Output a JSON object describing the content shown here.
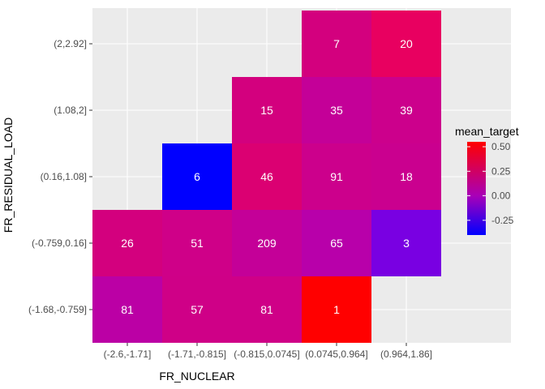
{
  "chart_data": {
    "type": "heatmap",
    "title": "",
    "xlabel": "FR_NUCLEAR",
    "ylabel": "FR_RESIDUAL_LOAD",
    "x_categories": [
      "(-2.6,-1.71]",
      "(-1.71,-0.815]",
      "(-0.815,0.0745]",
      "(0.0745,0.964]",
      "(0.964,1.86]"
    ],
    "y_categories": [
      "(-1.68,-0.759]",
      "(-0.759,0.16]",
      "(0.16,1.08]",
      "(1.08,2]",
      "(2,2.92]"
    ],
    "grid": true,
    "legend_position": "right",
    "legend": {
      "title": "mean_target",
      "ticks": [
        0.5,
        0.25,
        0.0,
        -0.25
      ],
      "tick_labels": [
        "0.50",
        "0.25",
        "0.00",
        "-0.25"
      ],
      "range": [
        -0.4,
        0.55
      ],
      "low_color": "#0000FF",
      "high_color": "#FF0000"
    },
    "cells": [
      {
        "x": "(-2.6,-1.71]",
        "y": "(-1.68,-0.759]",
        "count": 81,
        "mean_target": 0.02,
        "color": "#BB00A5"
      },
      {
        "x": "(-1.71,-0.815]",
        "y": "(-1.68,-0.759]",
        "count": 57,
        "mean_target": 0.13,
        "color": "#CF0087"
      },
      {
        "x": "(-0.815,0.0745]",
        "y": "(-1.68,-0.759]",
        "count": 81,
        "mean_target": 0.13,
        "color": "#CF0087"
      },
      {
        "x": "(0.0745,0.964]",
        "y": "(-1.68,-0.759]",
        "count": 1,
        "mean_target": 0.55,
        "color": "#FF0000"
      },
      {
        "x": "(-2.6,-1.71]",
        "y": "(-0.759,0.16]",
        "count": 26,
        "mean_target": 0.16,
        "color": "#D3007E"
      },
      {
        "x": "(-1.71,-0.815]",
        "y": "(-0.759,0.16]",
        "count": 51,
        "mean_target": 0.13,
        "color": "#CF0088"
      },
      {
        "x": "(-0.815,0.0745]",
        "y": "(-0.759,0.16]",
        "count": 209,
        "mean_target": 0.06,
        "color": "#C40098"
      },
      {
        "x": "(0.0745,0.964]",
        "y": "(-0.759,0.16]",
        "count": 65,
        "mean_target": 0.0,
        "color": "#B800AA"
      },
      {
        "x": "(0.964,1.86]",
        "y": "(-0.759,0.16]",
        "count": 3,
        "mean_target": -0.2,
        "color": "#7900E2"
      },
      {
        "x": "(-1.71,-0.815]",
        "y": "(0.16,1.08]",
        "count": 6,
        "mean_target": -0.4,
        "color": "#0000FF"
      },
      {
        "x": "(-0.815,0.0745]",
        "y": "(0.16,1.08]",
        "count": 46,
        "mean_target": 0.2,
        "color": "#DB0072"
      },
      {
        "x": "(0.0745,0.964]",
        "y": "(0.16,1.08]",
        "count": 91,
        "mean_target": 0.11,
        "color": "#CC008C"
      },
      {
        "x": "(0.964,1.86]",
        "y": "(0.16,1.08]",
        "count": 18,
        "mean_target": 0.1,
        "color": "#CA008F"
      },
      {
        "x": "(-0.815,0.0745]",
        "y": "(1.08,2]",
        "count": 15,
        "mean_target": 0.16,
        "color": "#D3007E"
      },
      {
        "x": "(0.0745,0.964]",
        "y": "(1.08,2]",
        "count": 35,
        "mean_target": 0.07,
        "color": "#C40098"
      },
      {
        "x": "(0.964,1.86]",
        "y": "(1.08,2]",
        "count": 39,
        "mean_target": 0.11,
        "color": "#CC008C"
      },
      {
        "x": "(0.0745,0.964]",
        "y": "(2,2.92]",
        "count": 7,
        "mean_target": 0.16,
        "color": "#D3007E"
      },
      {
        "x": "(0.964,1.86]",
        "y": "(2,2.92]",
        "count": 20,
        "mean_target": 0.3,
        "color": "#E80060"
      }
    ]
  }
}
